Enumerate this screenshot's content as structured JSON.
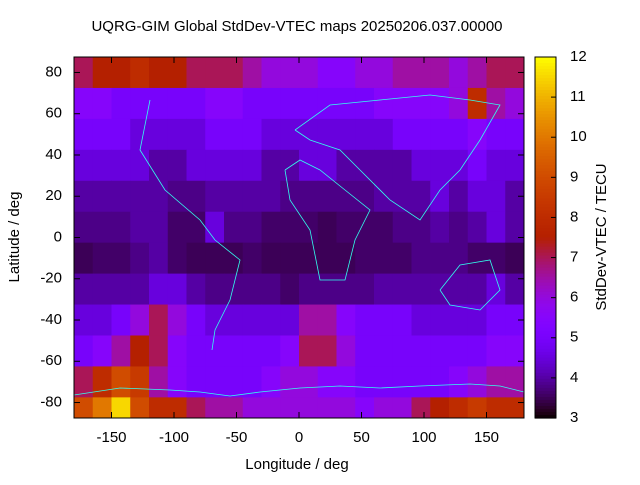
{
  "chart_data": {
    "type": "heatmap",
    "title": "UQRG-GIM Global StdDev-VTEC maps 20250206.037.00000",
    "xlabel": "Longitude / deg",
    "ylabel": "Latitude / deg",
    "cblabel": "StdDev-VTEC / TECU",
    "x": [
      -172.5,
      -157.5,
      -142.5,
      -127.5,
      -112.5,
      -97.5,
      -82.5,
      -67.5,
      -52.5,
      -37.5,
      -22.5,
      -7.5,
      7.5,
      22.5,
      37.5,
      52.5,
      67.5,
      82.5,
      97.5,
      112.5,
      127.5,
      142.5,
      157.5,
      172.5
    ],
    "y": [
      80,
      65,
      50,
      35,
      20,
      5,
      -10,
      -25,
      -40,
      -55,
      -70,
      -85
    ],
    "z": [
      [
        7,
        7.5,
        7.5,
        8,
        7.5,
        7.5,
        7,
        7,
        7,
        6.5,
        6,
        6,
        6,
        5.5,
        5.5,
        6,
        6,
        6.5,
        6.5,
        6.5,
        6,
        6.5,
        7,
        7
      ],
      [
        5.5,
        5.5,
        5,
        5,
        5,
        5,
        5,
        5.5,
        5.5,
        5,
        5,
        5,
        5,
        5,
        5,
        5,
        5.5,
        5.5,
        5.5,
        5.5,
        6,
        8,
        6.5,
        6
      ],
      [
        5,
        5,
        5,
        4.5,
        4.5,
        4.5,
        4.5,
        5,
        5,
        5,
        4.5,
        4.5,
        4.5,
        4.5,
        4.5,
        4.5,
        4.5,
        5,
        5,
        5,
        5,
        5.5,
        5,
        5
      ],
      [
        4.5,
        4.5,
        4.5,
        4.5,
        4,
        4,
        4.5,
        4.5,
        4.5,
        4.5,
        4,
        4,
        4.5,
        4.5,
        4,
        4,
        4,
        4,
        4.5,
        4.5,
        4.5,
        5,
        4.5,
        4.5
      ],
      [
        4,
        4,
        4,
        4,
        4,
        3.8,
        3.8,
        4,
        4,
        4,
        4,
        3.8,
        3.8,
        3.8,
        3.8,
        3.8,
        4,
        4,
        4,
        4.5,
        4,
        4.5,
        4.5,
        4
      ],
      [
        3.8,
        3.8,
        3.8,
        4,
        4,
        3.6,
        3.6,
        4.5,
        3.8,
        3.8,
        3.6,
        3.6,
        3.6,
        3.5,
        3.6,
        3.6,
        3.6,
        3.8,
        3.8,
        4,
        3.8,
        4,
        4.5,
        4
      ],
      [
        3.5,
        3.6,
        3.6,
        3.8,
        4,
        3.6,
        3.5,
        3.5,
        3.5,
        3.6,
        3.5,
        3.5,
        3.5,
        3.5,
        3.5,
        3.6,
        3.6,
        3.6,
        3.8,
        3.8,
        3.8,
        3.6,
        3.6,
        3.5
      ],
      [
        4,
        4,
        4,
        4,
        4.5,
        4.5,
        4,
        3.8,
        3.8,
        3.8,
        3.8,
        3.6,
        3.8,
        3.8,
        3.8,
        3.8,
        4,
        4,
        4,
        4,
        4,
        4,
        4.5,
        4
      ],
      [
        4.5,
        4.5,
        5,
        6,
        7,
        6,
        5,
        4.5,
        4.5,
        4.5,
        4.5,
        4.5,
        6.5,
        6.5,
        5.5,
        5,
        5,
        5,
        4.5,
        4.5,
        4.5,
        4.5,
        5,
        5
      ],
      [
        5,
        5.5,
        6.5,
        7.5,
        7,
        5.5,
        5,
        5,
        5,
        5,
        5,
        5.5,
        7,
        7,
        6,
        5,
        5,
        5,
        5,
        5,
        5,
        5,
        5.5,
        5.5
      ],
      [
        7,
        8,
        9,
        8.5,
        6.5,
        5.5,
        5,
        5,
        5,
        5,
        5.5,
        6,
        6,
        5.5,
        5.5,
        5,
        5,
        5,
        5,
        5,
        5.5,
        6,
        6.5,
        6.5
      ],
      [
        9,
        10,
        11.5,
        9,
        8,
        8,
        7,
        6.5,
        6.5,
        6,
        6,
        6,
        6,
        6,
        6,
        5.5,
        6,
        6,
        7,
        7.5,
        8,
        8.5,
        8,
        8
      ]
    ],
    "xlim": [
      -180,
      180
    ],
    "ylim": [
      -87.5,
      87.5
    ],
    "cblim": [
      3,
      12
    ],
    "xticks": [
      -150,
      -100,
      -50,
      0,
      50,
      100,
      150
    ],
    "yticks": [
      -80,
      -60,
      -40,
      -20,
      0,
      20,
      40,
      60,
      80
    ],
    "cbticks": [
      3,
      4,
      5,
      6,
      7,
      8,
      9,
      10,
      11,
      12
    ]
  }
}
